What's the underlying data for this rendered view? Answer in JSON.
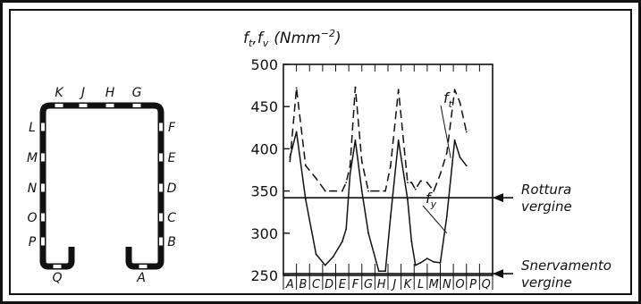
{
  "chart_data": {
    "type": "line",
    "title": "",
    "ylabel": "f_t, f_v (Nmm^-2)",
    "ylabel_parts": {
      "f": "f",
      "t": "t",
      "comma": ",",
      "v": "v",
      "unit_open": "(Nmm",
      "exp": "−2",
      "unit_close": ")"
    },
    "ylim": [
      250,
      500
    ],
    "yticks": [
      500,
      450,
      400,
      350,
      300,
      250
    ],
    "categories": [
      "A",
      "B",
      "C",
      "D",
      "E",
      "F",
      "G",
      "H",
      "J",
      "K",
      "L",
      "M",
      "N",
      "O",
      "P",
      "Q"
    ],
    "x": [
      1,
      1.5,
      2.2,
      3.0,
      3.7,
      4.3,
      5.0,
      5.3,
      5.6,
      6.0,
      6.5,
      7.0,
      7.8,
      8.3,
      8.7,
      9.3,
      10.0,
      10.3,
      10.6,
      11.0,
      11.5,
      12.0,
      12.5,
      13.0,
      13.6,
      14.0,
      14.5,
      15.0,
      15.3,
      15.6
    ],
    "series": [
      {
        "name": "f_t",
        "label": {
          "main": "f",
          "sub": "t"
        },
        "style": "dashed",
        "values": [
          385,
          472,
          380,
          365,
          350,
          350,
          350,
          360,
          380,
          473,
          385,
          350,
          350,
          350,
          380,
          470,
          360,
          360,
          352,
          362,
          360,
          350,
          370,
          395,
          470,
          455,
          420,
          null,
          null,
          null
        ]
      },
      {
        "name": "f_y",
        "label": {
          "main": "f",
          "sub": "y"
        },
        "style": "solid",
        "values": [
          390,
          420,
          340,
          275,
          262,
          272,
          290,
          305,
          370,
          410,
          350,
          300,
          255,
          255,
          320,
          410,
          340,
          290,
          262,
          265,
          270,
          266,
          265,
          320,
          410,
          390,
          380,
          null,
          null,
          null
        ]
      }
    ],
    "reference_lines": [
      {
        "y": 342,
        "label_1": "Rottura",
        "label_2": "vergine"
      },
      {
        "y": 252,
        "label_1": "Snervamento",
        "label_2": "vergine"
      }
    ],
    "grid": false,
    "legend": "labels on lines"
  },
  "section": {
    "top_labels": [
      "K",
      "J",
      "H",
      "G"
    ],
    "left_labels": [
      "L",
      "M",
      "N",
      "O",
      "P"
    ],
    "right_labels": [
      "F",
      "E",
      "D",
      "C",
      "B"
    ],
    "bottom_labels": [
      "Q",
      "A"
    ]
  }
}
